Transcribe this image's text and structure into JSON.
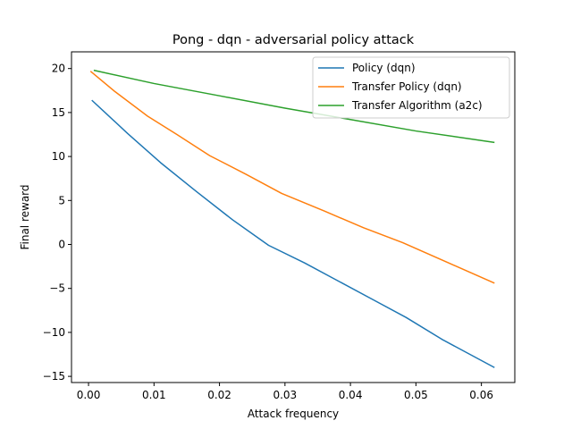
{
  "chart_data": {
    "type": "line",
    "title": "Pong - dqn - adversarial policy attack",
    "xlabel": "Attack frequency",
    "ylabel": "Final reward",
    "xlim": [
      -0.0026,
      0.0651
    ],
    "ylim": [
      -15.7,
      21.9
    ],
    "xticks": [
      0.0,
      0.01,
      0.02,
      0.03,
      0.04,
      0.05,
      0.06
    ],
    "xtick_labels": [
      "0.00",
      "0.01",
      "0.02",
      "0.03",
      "0.04",
      "0.05",
      "0.06"
    ],
    "yticks": [
      -15,
      -10,
      -5,
      0,
      5,
      10,
      15,
      20
    ],
    "ytick_labels": [
      "−15",
      "−10",
      "−5",
      "0",
      "5",
      "10",
      "15",
      "20"
    ],
    "grid": false,
    "legend_position": "top-right",
    "series": [
      {
        "name": "Policy (dqn)",
        "color": "#1f77b4",
        "x": [
          0.0005,
          0.006,
          0.011,
          0.0165,
          0.022,
          0.0275,
          0.033,
          0.038,
          0.0435,
          0.0485,
          0.054,
          0.062
        ],
        "y": [
          16.4,
          12.6,
          9.3,
          6.0,
          2.8,
          -0.1,
          -2.1,
          -4.1,
          -6.3,
          -8.3,
          -10.8,
          -14.0
        ]
      },
      {
        "name": "Transfer Policy (dqn)",
        "color": "#ff7f0e",
        "x": [
          0.0003,
          0.004,
          0.009,
          0.0135,
          0.0185,
          0.024,
          0.0295,
          0.036,
          0.042,
          0.048,
          0.055,
          0.062
        ],
        "y": [
          19.7,
          17.4,
          14.6,
          12.5,
          10.1,
          8.0,
          5.8,
          3.8,
          1.9,
          0.2,
          -2.1,
          -4.4
        ]
      },
      {
        "name": "Transfer Algorithm (a2c)",
        "color": "#2ca02c",
        "x": [
          0.0008,
          0.01,
          0.02,
          0.03,
          0.04,
          0.05,
          0.062
        ],
        "y": [
          19.8,
          18.3,
          16.9,
          15.5,
          14.2,
          12.9,
          11.6
        ]
      }
    ]
  }
}
